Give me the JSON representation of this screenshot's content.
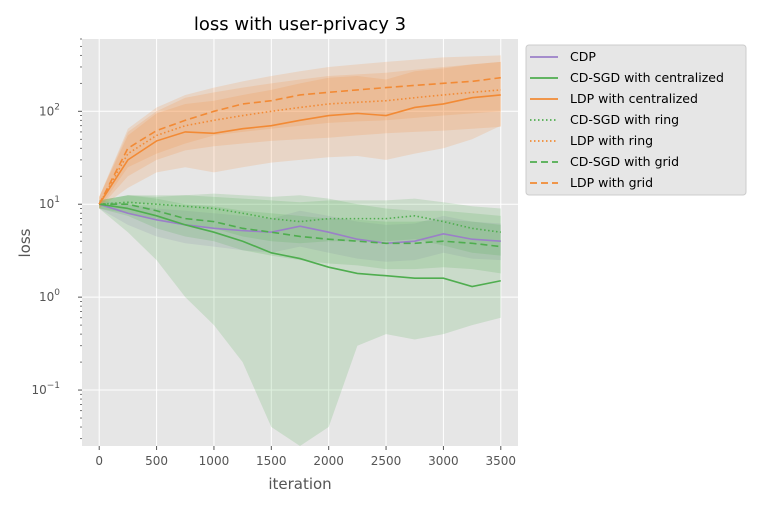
{
  "chart_data": {
    "type": "line",
    "title": "loss with user-privacy  3",
    "xlabel": "iteration",
    "ylabel": "loss",
    "xlim": [
      -150,
      3650
    ],
    "ylim": [
      0.025,
      600
    ],
    "yscale": "log",
    "grid": true,
    "legend_position": "outside-right-top",
    "xticks": [
      {
        "value": 0,
        "label": "0"
      },
      {
        "value": 500,
        "label": "500"
      },
      {
        "value": 1000,
        "label": "1000"
      },
      {
        "value": 1500,
        "label": "1500"
      },
      {
        "value": 2000,
        "label": "2000"
      },
      {
        "value": 2500,
        "label": "2500"
      },
      {
        "value": 3000,
        "label": "3000"
      },
      {
        "value": 3500,
        "label": "3500"
      }
    ],
    "yticks": [
      {
        "value": 0.1,
        "label": "10",
        "exp": "−1"
      },
      {
        "value": 1,
        "label": "10",
        "exp": "0"
      },
      {
        "value": 10,
        "label": "10",
        "exp": "1"
      },
      {
        "value": 100,
        "label": "10",
        "exp": "2"
      }
    ],
    "x": [
      0,
      250,
      500,
      750,
      1000,
      1250,
      1500,
      1750,
      2000,
      2250,
      2500,
      2750,
      3000,
      3250,
      3500
    ],
    "series": [
      {
        "name": "CDP",
        "color": "#9b7fc8",
        "dash": "solid",
        "values": [
          10,
          8.0,
          6.8,
          6.0,
          5.5,
          5.2,
          5.0,
          5.8,
          5.0,
          4.2,
          3.8,
          4.0,
          4.8,
          4.2,
          4.0
        ],
        "lower": [
          9,
          6.0,
          4.5,
          3.8,
          3.5,
          3.2,
          3.0,
          3.5,
          3.0,
          2.6,
          2.4,
          2.5,
          3.0,
          2.6,
          2.5
        ],
        "upper": [
          11,
          10.0,
          9.0,
          8.5,
          8.0,
          7.5,
          7.0,
          8.5,
          7.5,
          6.5,
          6.0,
          6.2,
          7.5,
          6.5,
          6.2
        ]
      },
      {
        "name": "CD-SGD with centralized",
        "color": "#4fad4f",
        "dash": "solid",
        "values": [
          10,
          9.0,
          7.5,
          6.0,
          5.0,
          4.0,
          3.0,
          2.6,
          2.1,
          1.8,
          1.7,
          1.6,
          1.6,
          1.3,
          1.5
        ],
        "lower": [
          9,
          5.0,
          2.5,
          1.0,
          0.5,
          0.2,
          0.04,
          0.025,
          0.04,
          0.3,
          0.4,
          0.35,
          0.4,
          0.5,
          0.6
        ],
        "upper": [
          11,
          12.5,
          12.0,
          12.5,
          13.0,
          12.5,
          12.0,
          12.5,
          11.5,
          10.0,
          9.0,
          8.5,
          8.5,
          8.0,
          7.5
        ]
      },
      {
        "name": "LDP with centralized",
        "color": "#f28a35",
        "dash": "solid",
        "values": [
          10,
          30,
          48,
          60,
          58,
          65,
          70,
          80,
          90,
          95,
          90,
          110,
          120,
          140,
          150
        ],
        "lower": [
          9,
          15,
          22,
          25,
          22,
          25,
          28,
          30,
          32,
          33,
          30,
          35,
          40,
          50,
          70
        ],
        "upper": [
          12,
          55,
          95,
          120,
          130,
          150,
          170,
          200,
          230,
          240,
          220,
          270,
          290,
          320,
          340
        ]
      },
      {
        "name": "CD-SGD with ring",
        "color": "#4fad4f",
        "dash": "dotted",
        "values": [
          10,
          10.5,
          10,
          9.5,
          9,
          8,
          7,
          6.5,
          7,
          7,
          7,
          7.5,
          6.5,
          5.5,
          5.0
        ],
        "lower": [
          9,
          8,
          7,
          6,
          5.5,
          4.5,
          4,
          3.8,
          4,
          4,
          4,
          4.2,
          3.6,
          3.0,
          2.8
        ],
        "upper": [
          11,
          12.5,
          12.5,
          12.5,
          12,
          11.5,
          11,
          10.5,
          11,
          11,
          11,
          11.5,
          10.5,
          9.5,
          9.0
        ]
      },
      {
        "name": "LDP with ring",
        "color": "#f28a35",
        "dash": "dotted",
        "values": [
          10,
          35,
          55,
          70,
          80,
          90,
          100,
          110,
          120,
          125,
          130,
          140,
          150,
          160,
          170
        ],
        "lower": [
          9,
          20,
          30,
          38,
          42,
          45,
          48,
          50,
          52,
          55,
          58,
          60,
          62,
          65,
          68
        ],
        "upper": [
          12,
          60,
          100,
          140,
          160,
          180,
          200,
          220,
          240,
          250,
          260,
          280,
          300,
          320,
          340
        ]
      },
      {
        "name": "CD-SGD with grid",
        "color": "#4fad4f",
        "dash": "dashed",
        "values": [
          10,
          10,
          8.5,
          7,
          6.5,
          5.5,
          5.0,
          4.5,
          4.2,
          4.0,
          3.8,
          3.8,
          4.0,
          3.8,
          3.5
        ],
        "lower": [
          9,
          7.5,
          5.5,
          4.5,
          4.0,
          3.2,
          2.8,
          2.5,
          2.3,
          2.2,
          2.0,
          2.0,
          2.1,
          2.0,
          1.8
        ],
        "upper": [
          11,
          12.5,
          11.5,
          10,
          9.5,
          8.5,
          8,
          7.5,
          7,
          6.8,
          6.5,
          6.5,
          6.8,
          6.5,
          6.0
        ]
      },
      {
        "name": "LDP with grid",
        "color": "#f28a35",
        "dash": "dashed",
        "values": [
          10,
          40,
          62,
          80,
          100,
          120,
          130,
          150,
          160,
          170,
          180,
          190,
          200,
          210,
          230
        ],
        "lower": [
          9,
          25,
          35,
          45,
          55,
          60,
          65,
          70,
          75,
          78,
          80,
          85,
          90,
          95,
          100
        ],
        "upper": [
          12,
          65,
          110,
          150,
          180,
          210,
          240,
          270,
          300,
          320,
          340,
          360,
          380,
          390,
          400
        ]
      }
    ]
  }
}
